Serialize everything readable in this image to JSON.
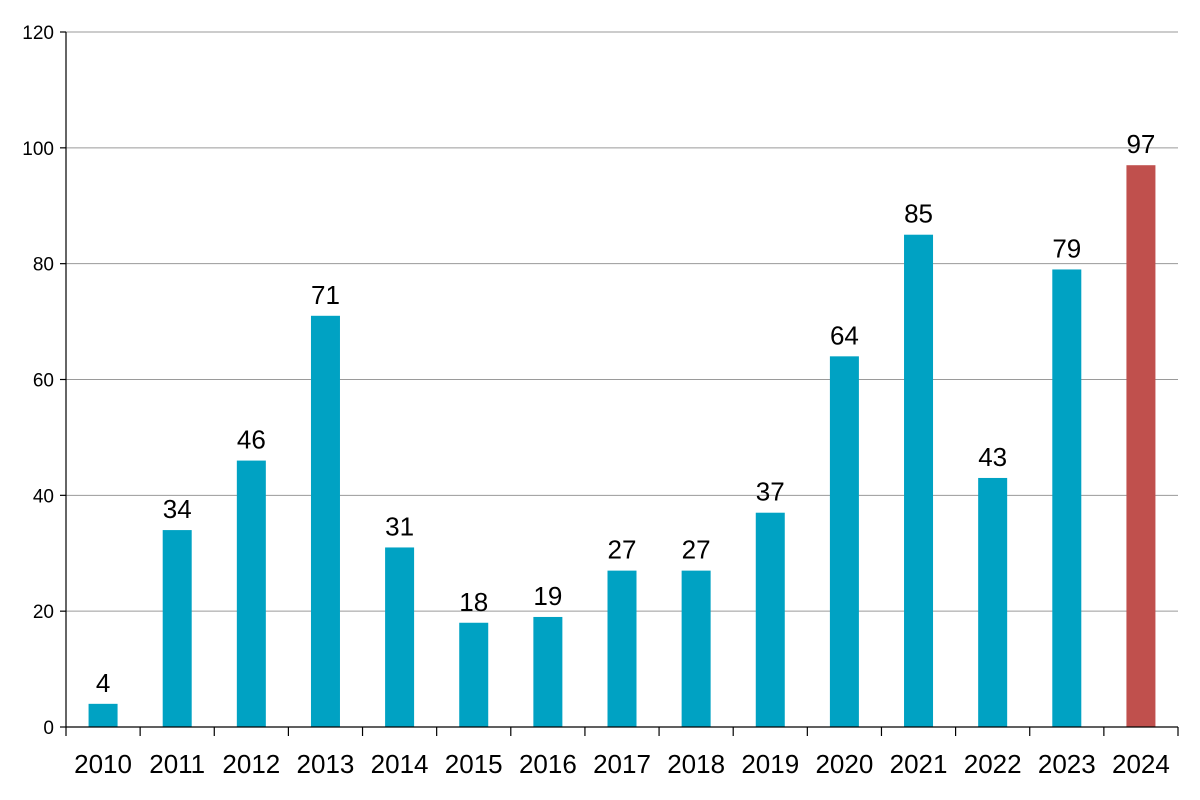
{
  "chart_data": {
    "type": "bar",
    "title": "",
    "xlabel": "",
    "ylabel": "",
    "categories": [
      "2010",
      "2011",
      "2012",
      "2013",
      "2014",
      "2015",
      "2016",
      "2017",
      "2018",
      "2019",
      "2020",
      "2021",
      "2022",
      "2023",
      "2024"
    ],
    "values": [
      4,
      34,
      46,
      71,
      31,
      18,
      19,
      27,
      27,
      37,
      64,
      85,
      43,
      79,
      97
    ],
    "ylim": [
      0,
      120
    ],
    "yticks": [
      0,
      20,
      40,
      60,
      80,
      100,
      120
    ],
    "grid": true,
    "legend": "none",
    "colors": {
      "default": "#00A2C3",
      "highlight": "#C0504D",
      "gridline": "#9a9a9a",
      "axis": "#000000"
    },
    "highlight_index": 14,
    "data_labels": true
  }
}
